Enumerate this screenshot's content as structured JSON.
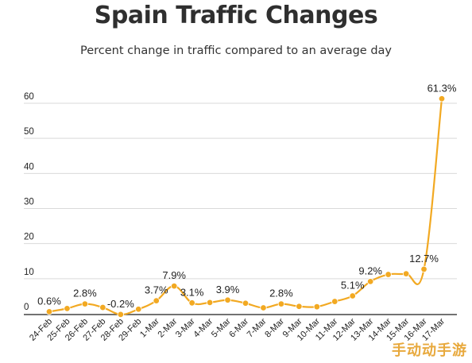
{
  "chart_data": {
    "type": "line",
    "title": "Spain Traffic Changes",
    "subtitle": "Percent change in traffic compared to an average day",
    "xlabel": "",
    "ylabel": "",
    "ylim": [
      0,
      60
    ],
    "yticks": [
      0,
      10,
      20,
      30,
      40,
      50,
      60
    ],
    "grid": true,
    "categories": [
      "24-Feb",
      "25-Feb",
      "26-Feb",
      "27-Feb",
      "28-Feb",
      "29-Feb",
      "1-Mar",
      "2-Mar",
      "3-Mar",
      "4-Mar",
      "5-Mar",
      "6-Mar",
      "7-Mar",
      "8-Mar",
      "9-Mar",
      "10-Mar",
      "11-Mar",
      "12-Mar",
      "13-Mar",
      "14-Mar",
      "15-Mar",
      "16-Mar",
      "17-Mar"
    ],
    "series": [
      {
        "values": [
          0.6,
          1.5,
          2.8,
          1.8,
          -0.2,
          1.3,
          3.7,
          7.9,
          3.1,
          3.2,
          3.9,
          3.0,
          1.7,
          2.8,
          2.1,
          2.0,
          3.5,
          5.1,
          9.2,
          11.2,
          11.4,
          12.7,
          61.3
        ],
        "color": "#f2a922"
      }
    ],
    "data_labels": [
      {
        "index": 0,
        "text": "0.6%"
      },
      {
        "index": 2,
        "text": "2.8%"
      },
      {
        "index": 4,
        "text": "-0.2%"
      },
      {
        "index": 6,
        "text": "3.7%"
      },
      {
        "index": 7,
        "text": "7.9%"
      },
      {
        "index": 8,
        "text": "3.1%"
      },
      {
        "index": 10,
        "text": "3.9%"
      },
      {
        "index": 13,
        "text": "2.8%"
      },
      {
        "index": 17,
        "text": "5.1%"
      },
      {
        "index": 18,
        "text": "9.2%"
      },
      {
        "index": 21,
        "text": "12.7%"
      },
      {
        "index": 22,
        "text": "61.3%"
      }
    ],
    "colors": {
      "line": "#f2a922",
      "grid": "#d9d9d9",
      "axis": "#444444",
      "text": "#222222"
    }
  },
  "watermark": "手动动手游"
}
